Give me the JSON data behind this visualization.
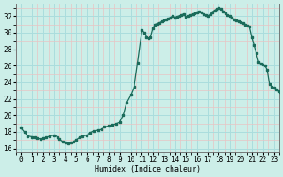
{
  "xlabel": "Humidex (Indice chaleur)",
  "ylabel": "",
  "bg_color": "#cceee8",
  "minor_grid_color": "#e8c4c4",
  "major_grid_color": "#aadddd",
  "line_color": "#1a6b5a",
  "ylim": [
    15.5,
    33.5
  ],
  "xlim": [
    -0.5,
    23.5
  ],
  "yticks": [
    16,
    18,
    20,
    22,
    24,
    26,
    28,
    30,
    32
  ],
  "xticks": [
    0,
    1,
    2,
    3,
    4,
    5,
    6,
    7,
    8,
    9,
    10,
    11,
    12,
    13,
    14,
    15,
    16,
    17,
    18,
    19,
    20,
    21,
    22,
    23
  ],
  "x": [
    0,
    0.3,
    0.6,
    1.0,
    1.3,
    1.5,
    1.8,
    2.0,
    2.3,
    2.6,
    3.0,
    3.3,
    3.5,
    3.8,
    4.0,
    4.3,
    4.5,
    4.8,
    5.0,
    5.3,
    5.6,
    6.0,
    6.3,
    6.6,
    7.0,
    7.3,
    7.6,
    8.0,
    8.3,
    8.6,
    9.0,
    9.3,
    9.6,
    10.0,
    10.3,
    10.6,
    11.0,
    11.2,
    11.4,
    11.6,
    11.8,
    12.0,
    12.2,
    12.4,
    12.6,
    12.8,
    13.0,
    13.2,
    13.4,
    13.6,
    13.8,
    14.0,
    14.2,
    14.4,
    14.6,
    14.8,
    15.0,
    15.2,
    15.4,
    15.6,
    15.8,
    16.0,
    16.2,
    16.4,
    16.6,
    16.8,
    17.0,
    17.2,
    17.4,
    17.6,
    17.8,
    18.0,
    18.2,
    18.4,
    18.6,
    18.8,
    19.0,
    19.2,
    19.4,
    19.6,
    19.8,
    20.0,
    20.2,
    20.4,
    20.6,
    20.8,
    21.0,
    21.2,
    21.4,
    21.6,
    21.8,
    22.0,
    22.2,
    22.4,
    22.6,
    22.8,
    23.0,
    23.2,
    23.4,
    23.6
  ],
  "y": [
    18.5,
    18.0,
    17.5,
    17.4,
    17.3,
    17.2,
    17.15,
    17.2,
    17.3,
    17.5,
    17.6,
    17.4,
    17.1,
    16.8,
    16.7,
    16.65,
    16.7,
    16.8,
    17.0,
    17.3,
    17.5,
    17.6,
    17.9,
    18.1,
    18.2,
    18.3,
    18.6,
    18.7,
    18.8,
    18.95,
    19.2,
    20.0,
    21.5,
    22.5,
    23.5,
    26.3,
    30.3,
    30.0,
    29.5,
    29.3,
    29.5,
    30.5,
    31.0,
    31.1,
    31.2,
    31.35,
    31.5,
    31.55,
    31.7,
    31.85,
    32.0,
    31.85,
    31.95,
    32.05,
    32.15,
    32.25,
    31.9,
    32.0,
    32.1,
    32.25,
    32.35,
    32.5,
    32.55,
    32.45,
    32.25,
    32.1,
    32.0,
    32.2,
    32.5,
    32.7,
    32.85,
    33.0,
    32.85,
    32.6,
    32.3,
    32.1,
    32.0,
    31.8,
    31.6,
    31.5,
    31.4,
    31.3,
    31.15,
    31.0,
    30.85,
    30.7,
    29.5,
    28.5,
    27.5,
    26.5,
    26.2,
    26.1,
    26.0,
    25.5,
    23.8,
    23.5,
    23.3,
    23.1,
    22.9,
    22.8
  ]
}
